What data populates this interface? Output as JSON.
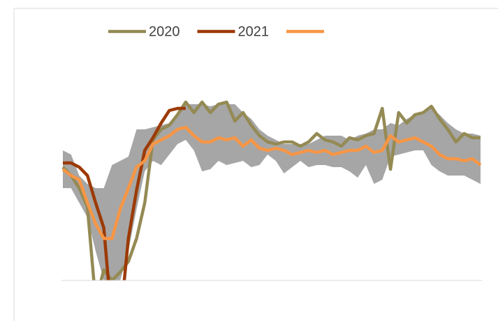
{
  "chart_data": {
    "type": "line",
    "categories": [
      null,
      null,
      null,
      null,
      null,
      null,
      null,
      null,
      null,
      null,
      null,
      null,
      null,
      null,
      null,
      null,
      null,
      null,
      null,
      null,
      null,
      null,
      null,
      null,
      null,
      null,
      null,
      null,
      null,
      null,
      null,
      null,
      null,
      null,
      null,
      null,
      null,
      null,
      null,
      null,
      null,
      null,
      null,
      null,
      null,
      null,
      null,
      null,
      null,
      null,
      null,
      null
    ],
    "ylim": [
      0,
      100
    ],
    "band": {
      "color": "#a6a6a6",
      "upper": [
        62,
        60,
        50,
        46,
        44,
        44,
        55,
        57,
        59,
        72,
        72,
        73,
        74,
        75,
        79,
        84,
        84,
        84,
        83,
        84,
        84,
        84,
        80,
        77,
        72,
        69,
        67,
        65,
        65,
        65,
        65,
        67,
        69,
        69,
        69,
        67,
        69,
        70,
        72,
        72,
        75,
        74,
        77,
        79,
        80,
        82,
        79,
        75,
        72,
        70,
        70,
        69
      ],
      "lower": [
        44,
        44,
        37,
        30,
        14,
        0,
        0,
        0,
        14,
        34,
        52,
        57,
        55,
        60,
        65,
        67,
        62,
        52,
        53,
        57,
        55,
        56,
        57,
        54,
        55,
        60,
        57,
        51,
        54,
        57,
        54,
        55,
        55,
        54,
        54,
        52,
        49,
        55,
        46,
        48,
        59,
        60,
        61,
        62,
        62,
        55,
        52,
        50,
        50,
        50,
        48,
        46
      ]
    },
    "series": [
      {
        "name": "2020",
        "color": "#948a54",
        "values": [
          54,
          50,
          44,
          35,
          -10,
          5,
          0,
          4,
          9,
          20,
          37,
          67,
          72,
          74,
          79,
          85,
          80,
          85,
          80,
          84,
          85,
          76,
          80,
          74,
          69,
          66,
          65,
          66,
          66,
          64,
          66,
          70,
          67,
          66,
          64,
          68,
          67,
          69,
          70,
          82,
          53,
          80,
          75,
          79,
          80,
          83,
          77,
          72,
          66,
          70,
          68,
          68
        ]
      },
      {
        "name": "2021",
        "color": "#9c3a06",
        "values": [
          56,
          56,
          54,
          50,
          37,
          25,
          -20,
          -20,
          20,
          43,
          62,
          68,
          75,
          81,
          82,
          82,
          null,
          null,
          null,
          null,
          null,
          null,
          null,
          null,
          null,
          null,
          null,
          null,
          null,
          null,
          null,
          null,
          null,
          null,
          null,
          null,
          null,
          null,
          null,
          null,
          null,
          null,
          null,
          null,
          null,
          null,
          null,
          null,
          null,
          null,
          null,
          null
        ]
      },
      {
        "color": "#f79646",
        "values": [
          53,
          50,
          48,
          37,
          27,
          20,
          20,
          34,
          44,
          54,
          57,
          65,
          67,
          69,
          72,
          73,
          69,
          66,
          66,
          68,
          67,
          68,
          64,
          67,
          63,
          62,
          63,
          62,
          60,
          61,
          62,
          61,
          62,
          60,
          61,
          62,
          62,
          64,
          61,
          62,
          69,
          66,
          67,
          68,
          66,
          64,
          60,
          58,
          58,
          57,
          58,
          55
        ]
      }
    ]
  }
}
